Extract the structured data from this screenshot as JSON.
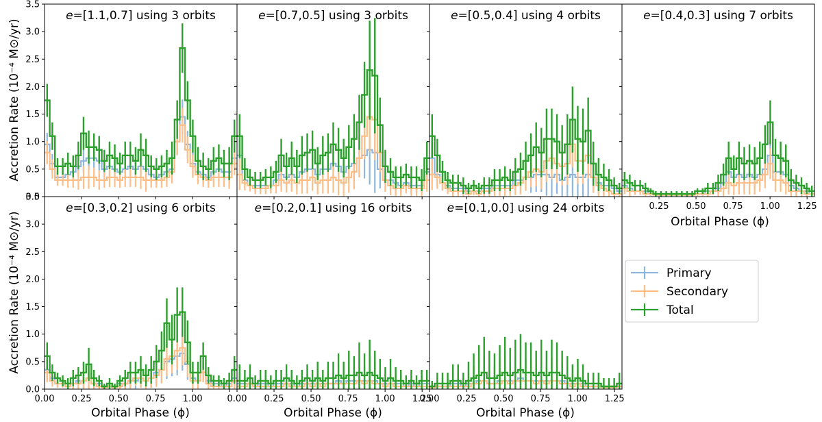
{
  "chart_data": {
    "type": "line",
    "ylabel": "Accretion Rate (10⁻⁴ M⊙/yr)",
    "xlabel": "Orbital Phase (ϕ)",
    "ylim": [
      0.0,
      3.5
    ],
    "xlim": [
      0.0,
      1.3
    ],
    "yticks": [
      "0.0",
      "0.5",
      "1.0",
      "1.5",
      "2.0",
      "2.5",
      "3.0",
      "3.5"
    ],
    "xticks": [
      "0.00",
      "0.25",
      "0.50",
      "0.75",
      "1.00",
      "1.25"
    ],
    "legend": {
      "placement": "right",
      "entries": [
        "Primary",
        "Secondary",
        "Total"
      ]
    },
    "colors": {
      "Primary": "#8fb7dc",
      "Secondary": "#fdbf87",
      "Total": "#2ca02c"
    },
    "panels": [
      {
        "title_math": "e",
        "title_rest": "=[1.1,0.7] using 3 orbits",
        "Total": [
          1.75,
          1.1,
          0.55,
          0.55,
          0.6,
          0.55,
          0.75,
          1.15,
          0.9,
          0.9,
          0.85,
          0.65,
          0.75,
          0.7,
          0.6,
          0.75,
          0.75,
          0.65,
          0.85,
          0.75,
          0.55,
          0.5,
          0.55,
          0.6,
          0.7,
          1.4,
          2.7,
          1.75,
          1.1,
          0.65,
          0.55,
          0.5,
          0.65,
          0.7,
          0.6,
          0.6,
          1.1
        ],
        "Primary": [
          0.95,
          0.6,
          0.35,
          0.35,
          0.4,
          0.45,
          0.55,
          0.65,
          0.7,
          0.7,
          0.65,
          0.5,
          0.55,
          0.5,
          0.45,
          0.5,
          0.55,
          0.5,
          0.55,
          0.5,
          0.4,
          0.35,
          0.4,
          0.45,
          0.5,
          1.0,
          1.45,
          0.95,
          0.6,
          0.45,
          0.4,
          0.35,
          0.45,
          0.5,
          0.45,
          0.45,
          0.7
        ],
        "Secondary": [
          0.8,
          0.5,
          0.3,
          0.3,
          0.3,
          0.3,
          0.3,
          0.35,
          0.35,
          0.35,
          0.3,
          0.3,
          0.35,
          0.35,
          0.3,
          0.35,
          0.35,
          0.35,
          0.35,
          0.3,
          0.3,
          0.3,
          0.3,
          0.35,
          0.45,
          1.0,
          1.3,
          0.85,
          0.55,
          0.4,
          0.35,
          0.3,
          0.35,
          0.35,
          0.35,
          0.35,
          0.6
        ],
        "errors": [
          0.3,
          0.25,
          0.15,
          0.15,
          0.2,
          0.2,
          0.25,
          0.3,
          0.3,
          0.25,
          0.25,
          0.2,
          0.25,
          0.25,
          0.2,
          0.25,
          0.25,
          0.25,
          0.3,
          0.3,
          0.2,
          0.2,
          0.2,
          0.25,
          0.3,
          0.35,
          0.45,
          0.35,
          0.3,
          0.25,
          0.25,
          0.2,
          0.25,
          0.25,
          0.25,
          0.3,
          0.3
        ]
      },
      {
        "title_math": "e",
        "title_rest": "=[0.7,0.5] using 3 orbits",
        "Total": [
          1.1,
          0.5,
          0.35,
          0.3,
          0.3,
          0.35,
          0.35,
          0.45,
          0.75,
          0.55,
          0.7,
          0.55,
          0.75,
          0.8,
          0.85,
          0.6,
          0.75,
          0.8,
          0.95,
          0.85,
          0.7,
          0.9,
          1.05,
          1.35,
          1.85,
          2.3,
          2.2,
          1.3,
          0.55,
          0.45,
          0.35,
          0.35,
          0.4,
          0.35,
          0.35,
          0.3,
          0.7
        ],
        "Primary": [
          0.75,
          0.3,
          0.2,
          0.2,
          0.2,
          0.2,
          0.2,
          0.3,
          0.4,
          0.35,
          0.4,
          0.35,
          0.45,
          0.5,
          0.5,
          0.4,
          0.5,
          0.5,
          0.6,
          0.55,
          0.45,
          0.55,
          0.6,
          0.7,
          0.75,
          0.85,
          0.8,
          0.5,
          0.3,
          0.3,
          0.25,
          0.2,
          0.25,
          0.2,
          0.2,
          0.2,
          0.45
        ],
        "Secondary": [
          0.4,
          0.25,
          0.2,
          0.15,
          0.15,
          0.15,
          0.2,
          0.2,
          0.3,
          0.25,
          0.3,
          0.25,
          0.3,
          0.3,
          0.35,
          0.25,
          0.3,
          0.3,
          0.35,
          0.3,
          0.25,
          0.35,
          0.45,
          0.7,
          1.1,
          1.45,
          1.4,
          0.8,
          0.3,
          0.2,
          0.15,
          0.15,
          0.2,
          0.15,
          0.15,
          0.15,
          0.3
        ],
        "errors": [
          0.4,
          0.2,
          0.15,
          0.15,
          0.15,
          0.15,
          0.2,
          0.2,
          0.3,
          0.25,
          0.3,
          0.3,
          0.35,
          0.35,
          0.35,
          0.3,
          0.35,
          0.35,
          0.4,
          0.4,
          0.35,
          0.4,
          0.45,
          0.5,
          0.6,
          0.9,
          1.05,
          0.5,
          0.3,
          0.25,
          0.2,
          0.2,
          0.2,
          0.2,
          0.2,
          0.2,
          0.3
        ]
      },
      {
        "title_math": "e",
        "title_rest": "=[0.5,0.4] using 4 orbits",
        "Total": [
          1.1,
          0.75,
          0.45,
          0.3,
          0.25,
          0.25,
          0.2,
          0.15,
          0.2,
          0.15,
          0.2,
          0.2,
          0.3,
          0.3,
          0.35,
          0.3,
          0.45,
          0.5,
          0.65,
          0.75,
          0.9,
          0.8,
          1.05,
          1.05,
          1.0,
          0.8,
          0.95,
          1.4,
          1.05,
          1.0,
          1.2,
          0.6,
          0.4,
          0.35,
          0.3,
          0.2,
          0.15
        ],
        "Primary": [
          0.7,
          0.4,
          0.25,
          0.2,
          0.15,
          0.15,
          0.15,
          0.1,
          0.1,
          0.1,
          0.15,
          0.15,
          0.2,
          0.2,
          0.2,
          0.2,
          0.3,
          0.3,
          0.35,
          0.35,
          0.4,
          0.4,
          0.4,
          0.35,
          0.4,
          0.3,
          0.35,
          0.4,
          0.35,
          0.35,
          0.4,
          0.35,
          0.25,
          0.2,
          0.2,
          0.15,
          0.1
        ],
        "Secondary": [
          0.4,
          0.35,
          0.25,
          0.15,
          0.1,
          0.1,
          0.1,
          0.05,
          0.1,
          0.05,
          0.1,
          0.1,
          0.15,
          0.15,
          0.15,
          0.15,
          0.2,
          0.25,
          0.35,
          0.45,
          0.5,
          0.45,
          0.65,
          0.7,
          0.6,
          0.55,
          0.6,
          0.95,
          0.65,
          0.65,
          0.75,
          0.35,
          0.2,
          0.15,
          0.1,
          0.05,
          0.05
        ],
        "errors": [
          0.4,
          0.3,
          0.2,
          0.15,
          0.15,
          0.15,
          0.15,
          0.1,
          0.1,
          0.1,
          0.15,
          0.15,
          0.2,
          0.2,
          0.2,
          0.2,
          0.25,
          0.3,
          0.35,
          0.4,
          0.45,
          0.45,
          0.55,
          0.55,
          0.5,
          0.5,
          0.55,
          0.6,
          0.6,
          0.6,
          0.6,
          0.4,
          0.3,
          0.25,
          0.2,
          0.15,
          0.1
        ]
      },
      {
        "title_math": "e",
        "title_rest": "=[0.4,0.3] using 7 orbits",
        "Total": [
          0.3,
          0.25,
          0.2,
          0.2,
          0.15,
          0.1,
          0.05,
          0.05,
          0.05,
          0.05,
          0.05,
          0.05,
          0.05,
          0.05,
          0.1,
          0.1,
          0.15,
          0.15,
          0.25,
          0.4,
          0.7,
          0.5,
          0.7,
          0.6,
          0.65,
          0.6,
          0.7,
          0.95,
          1.35,
          0.75,
          0.7,
          0.65,
          0.3,
          0.25,
          0.2,
          0.15,
          0.1
        ],
        "Primary": [
          0.2,
          0.15,
          0.1,
          0.1,
          0.1,
          0.05,
          0.05,
          0.03,
          0.03,
          0.03,
          0.03,
          0.03,
          0.03,
          0.03,
          0.05,
          0.05,
          0.1,
          0.1,
          0.15,
          0.25,
          0.45,
          0.35,
          0.4,
          0.35,
          0.4,
          0.35,
          0.4,
          0.5,
          0.75,
          0.45,
          0.45,
          0.4,
          0.2,
          0.15,
          0.1,
          0.1,
          0.05
        ],
        "Secondary": [
          0.15,
          0.1,
          0.1,
          0.1,
          0.05,
          0.05,
          0.03,
          0.03,
          0.03,
          0.03,
          0.03,
          0.03,
          0.03,
          0.03,
          0.05,
          0.05,
          0.05,
          0.1,
          0.1,
          0.15,
          0.25,
          0.2,
          0.25,
          0.25,
          0.25,
          0.25,
          0.3,
          0.4,
          0.6,
          0.3,
          0.3,
          0.25,
          0.1,
          0.1,
          0.1,
          0.05,
          0.05
        ],
        "errors": [
          0.15,
          0.15,
          0.1,
          0.1,
          0.1,
          0.05,
          0.05,
          0.05,
          0.05,
          0.05,
          0.05,
          0.05,
          0.05,
          0.05,
          0.05,
          0.05,
          0.1,
          0.1,
          0.15,
          0.2,
          0.3,
          0.25,
          0.3,
          0.3,
          0.3,
          0.3,
          0.3,
          0.35,
          0.4,
          0.3,
          0.3,
          0.3,
          0.2,
          0.15,
          0.15,
          0.1,
          0.1
        ]
      },
      {
        "title_math": "e",
        "title_rest": "=[0.3,0.2] using 6 orbits",
        "Total": [
          0.6,
          0.3,
          0.2,
          0.15,
          0.1,
          0.2,
          0.25,
          0.3,
          0.45,
          0.2,
          0.15,
          0.05,
          0.1,
          0.05,
          0.15,
          0.2,
          0.3,
          0.3,
          0.35,
          0.25,
          0.35,
          0.5,
          0.7,
          1.2,
          0.9,
          1.35,
          1.4,
          0.85,
          0.3,
          0.3,
          0.6,
          0.25,
          0.15,
          0.15,
          0.1,
          0.15,
          0.35
        ],
        "Primary": [
          0.35,
          0.2,
          0.1,
          0.1,
          0.05,
          0.1,
          0.15,
          0.15,
          0.2,
          0.1,
          0.1,
          0.03,
          0.05,
          0.03,
          0.1,
          0.1,
          0.15,
          0.15,
          0.2,
          0.15,
          0.2,
          0.3,
          0.35,
          0.5,
          0.55,
          0.6,
          0.65,
          0.45,
          0.2,
          0.15,
          0.3,
          0.15,
          0.1,
          0.1,
          0.05,
          0.1,
          0.2
        ],
        "Secondary": [
          0.3,
          0.15,
          0.1,
          0.1,
          0.05,
          0.1,
          0.1,
          0.15,
          0.2,
          0.1,
          0.05,
          0.03,
          0.05,
          0.03,
          0.05,
          0.1,
          0.15,
          0.2,
          0.2,
          0.15,
          0.2,
          0.25,
          0.35,
          0.55,
          0.6,
          0.7,
          0.75,
          0.5,
          0.15,
          0.15,
          0.3,
          0.1,
          0.05,
          0.05,
          0.05,
          0.05,
          0.15
        ],
        "errors": [
          0.25,
          0.15,
          0.1,
          0.1,
          0.1,
          0.15,
          0.15,
          0.2,
          0.3,
          0.15,
          0.1,
          0.05,
          0.1,
          0.05,
          0.1,
          0.15,
          0.2,
          0.2,
          0.25,
          0.2,
          0.25,
          0.3,
          0.35,
          0.45,
          0.45,
          0.5,
          0.45,
          0.4,
          0.2,
          0.2,
          0.25,
          0.15,
          0.1,
          0.1,
          0.1,
          0.15,
          0.25
        ]
      },
      {
        "title_math": "e",
        "title_rest": "=[0.2,0.1] using 16 orbits",
        "Total": [
          0.15,
          0.15,
          0.2,
          0.1,
          0.15,
          0.15,
          0.1,
          0.15,
          0.15,
          0.2,
          0.15,
          0.1,
          0.15,
          0.2,
          0.15,
          0.2,
          0.15,
          0.2,
          0.2,
          0.25,
          0.2,
          0.25,
          0.25,
          0.3,
          0.25,
          0.3,
          0.25,
          0.2,
          0.15,
          0.2,
          0.15,
          0.15,
          0.1,
          0.15,
          0.1,
          0.15,
          0.15
        ],
        "Primary": [
          0.1,
          0.1,
          0.1,
          0.05,
          0.1,
          0.1,
          0.05,
          0.1,
          0.1,
          0.1,
          0.1,
          0.05,
          0.1,
          0.1,
          0.1,
          0.1,
          0.1,
          0.1,
          0.1,
          0.15,
          0.1,
          0.15,
          0.15,
          0.15,
          0.15,
          0.15,
          0.15,
          0.1,
          0.1,
          0.1,
          0.1,
          0.1,
          0.05,
          0.1,
          0.05,
          0.1,
          0.1
        ],
        "Secondary": [
          0.05,
          0.05,
          0.1,
          0.05,
          0.05,
          0.05,
          0.05,
          0.05,
          0.05,
          0.1,
          0.05,
          0.05,
          0.05,
          0.1,
          0.05,
          0.1,
          0.05,
          0.1,
          0.1,
          0.1,
          0.1,
          0.1,
          0.1,
          0.15,
          0.1,
          0.15,
          0.1,
          0.1,
          0.05,
          0.1,
          0.05,
          0.05,
          0.05,
          0.05,
          0.05,
          0.05,
          0.05
        ],
        "errors": [
          0.3,
          0.2,
          0.25,
          0.15,
          0.2,
          0.2,
          0.15,
          0.2,
          0.2,
          0.25,
          0.2,
          0.15,
          0.2,
          0.25,
          0.2,
          0.3,
          0.2,
          0.3,
          0.3,
          0.4,
          0.3,
          0.45,
          0.35,
          0.55,
          0.4,
          0.6,
          0.45,
          0.35,
          0.25,
          0.35,
          0.25,
          0.2,
          0.15,
          0.2,
          0.15,
          0.2,
          0.2
        ]
      },
      {
        "title_math": "e",
        "title_rest": "=[0.1,0.0] using 24 orbits",
        "Total": [
          0.05,
          0.1,
          0.1,
          0.1,
          0.15,
          0.15,
          0.1,
          0.15,
          0.2,
          0.25,
          0.3,
          0.2,
          0.2,
          0.25,
          0.3,
          0.25,
          0.3,
          0.35,
          0.3,
          0.3,
          0.25,
          0.3,
          0.25,
          0.3,
          0.3,
          0.25,
          0.2,
          0.15,
          0.2,
          0.15,
          0.1,
          0.1,
          0.1,
          0.05,
          0.05,
          0.05,
          0.1
        ],
        "Primary": [
          0.03,
          0.05,
          0.05,
          0.05,
          0.1,
          0.1,
          0.05,
          0.1,
          0.1,
          0.15,
          0.15,
          0.1,
          0.1,
          0.15,
          0.15,
          0.15,
          0.15,
          0.2,
          0.15,
          0.15,
          0.15,
          0.15,
          0.15,
          0.15,
          0.15,
          0.15,
          0.1,
          0.1,
          0.1,
          0.1,
          0.05,
          0.05,
          0.05,
          0.03,
          0.03,
          0.03,
          0.05
        ],
        "Secondary": [
          0.03,
          0.05,
          0.05,
          0.05,
          0.05,
          0.05,
          0.05,
          0.05,
          0.1,
          0.1,
          0.15,
          0.1,
          0.1,
          0.1,
          0.15,
          0.1,
          0.15,
          0.15,
          0.15,
          0.15,
          0.1,
          0.15,
          0.1,
          0.15,
          0.15,
          0.1,
          0.1,
          0.05,
          0.1,
          0.05,
          0.05,
          0.05,
          0.05,
          0.03,
          0.03,
          0.03,
          0.05
        ],
        "errors": [
          0.1,
          0.2,
          0.2,
          0.2,
          0.3,
          0.3,
          0.2,
          0.35,
          0.45,
          0.55,
          0.65,
          0.5,
          0.45,
          0.55,
          0.65,
          0.5,
          0.6,
          0.65,
          0.55,
          0.55,
          0.45,
          0.6,
          0.45,
          0.6,
          0.55,
          0.45,
          0.4,
          0.3,
          0.35,
          0.3,
          0.2,
          0.2,
          0.2,
          0.15,
          0.15,
          0.15,
          0.2
        ]
      }
    ]
  }
}
